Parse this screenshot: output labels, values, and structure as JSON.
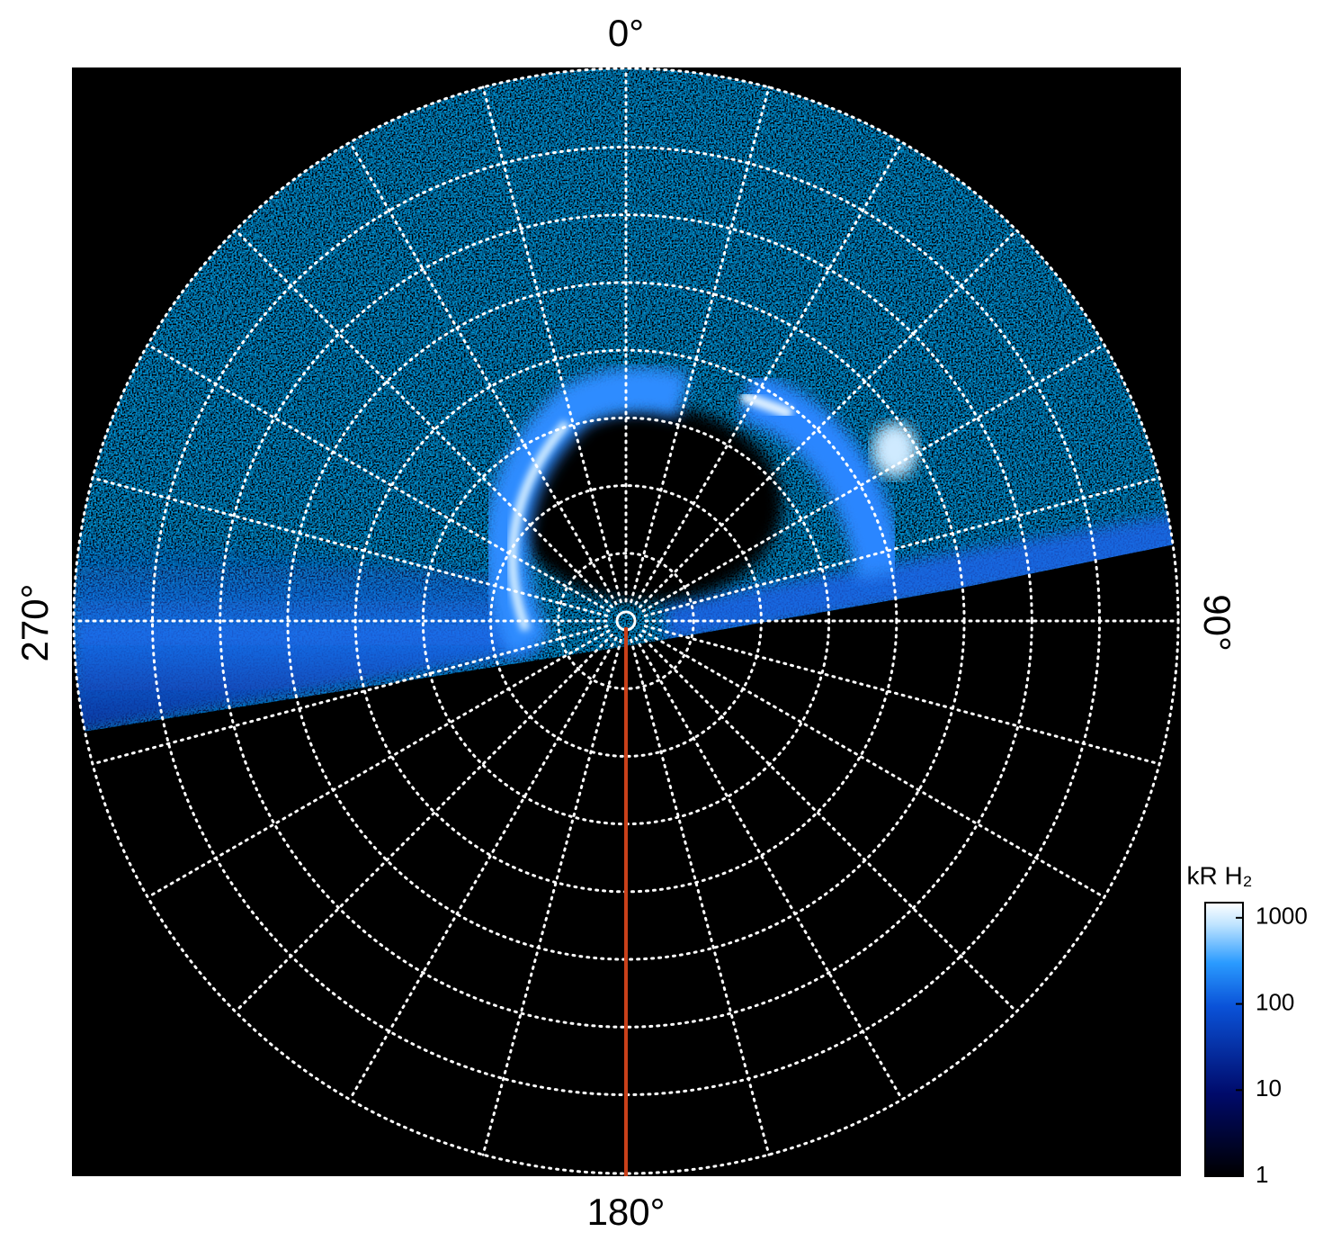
{
  "angle_labels": {
    "top": "0°",
    "right": "90°",
    "bottom": "180°",
    "left": "270°"
  },
  "colorbar": {
    "title": "kR H₂",
    "scale": "log",
    "lim": [
      1,
      1500
    ],
    "ticks": [
      1,
      10,
      100,
      1000
    ]
  }
}
